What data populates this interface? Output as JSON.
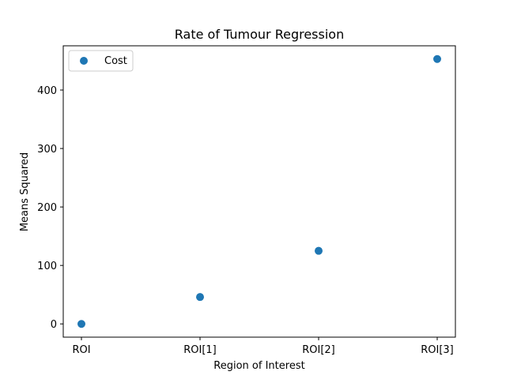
{
  "chart_data": {
    "type": "scatter",
    "title": "Rate of Tumour Regression",
    "xlabel": "Region of Interest",
    "ylabel": "Means Squared",
    "categories": [
      "ROI",
      "ROI[1]",
      "ROI[2]",
      "ROI[3]"
    ],
    "series": [
      {
        "name": "Cost",
        "values": [
          0,
          46,
          125,
          453
        ],
        "color": "#1f77b4"
      }
    ],
    "ylim": [
      -22.65,
      475.65
    ],
    "yticks": [
      0,
      100,
      200,
      300,
      400
    ],
    "grid": false,
    "legend": "top-left"
  }
}
